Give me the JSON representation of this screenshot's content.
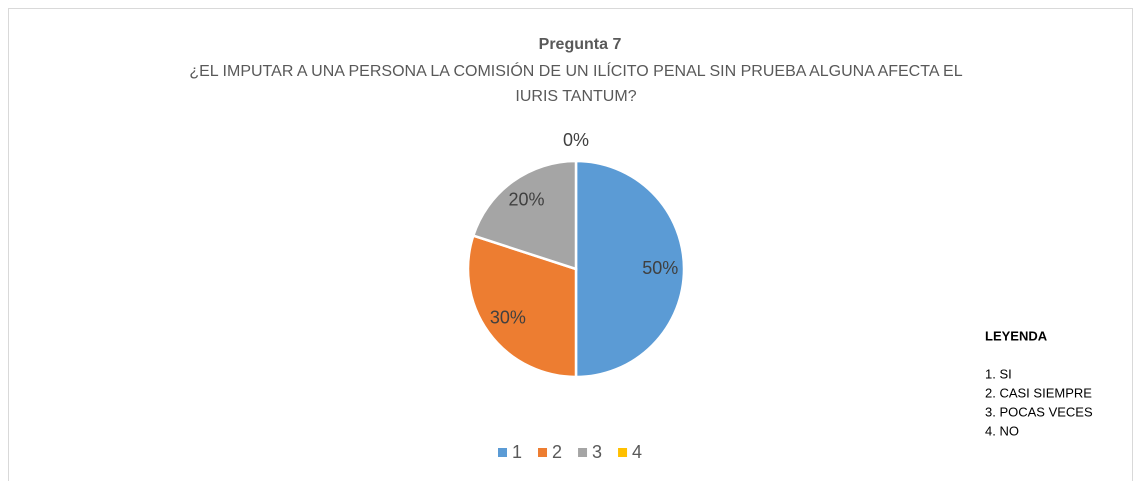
{
  "chart_data": {
    "type": "pie",
    "title": "Pregunta 7",
    "subtitle": [
      "¿EL IMPUTAR A UNA PERSONA LA COMISIÓN DE UN ILÍCITO PENAL SIN PRUEBA ALGUNA AFECTA EL",
      "IURIS TANTUM?"
    ],
    "categories": [
      "1",
      "2",
      "3",
      "4"
    ],
    "values": [
      50,
      30,
      20,
      0
    ],
    "value_labels": [
      "50%",
      "30%",
      "20%",
      "0%"
    ],
    "colors": [
      "#5b9bd5",
      "#ed7d31",
      "#a5a5a5",
      "#ffc000"
    ],
    "legend": "bottom",
    "annotations": {
      "title": "LEYENDA",
      "items": [
        "1. SI",
        "2. CASI SIEMPRE",
        "3. POCAS VECES",
        "4. NO"
      ]
    }
  }
}
